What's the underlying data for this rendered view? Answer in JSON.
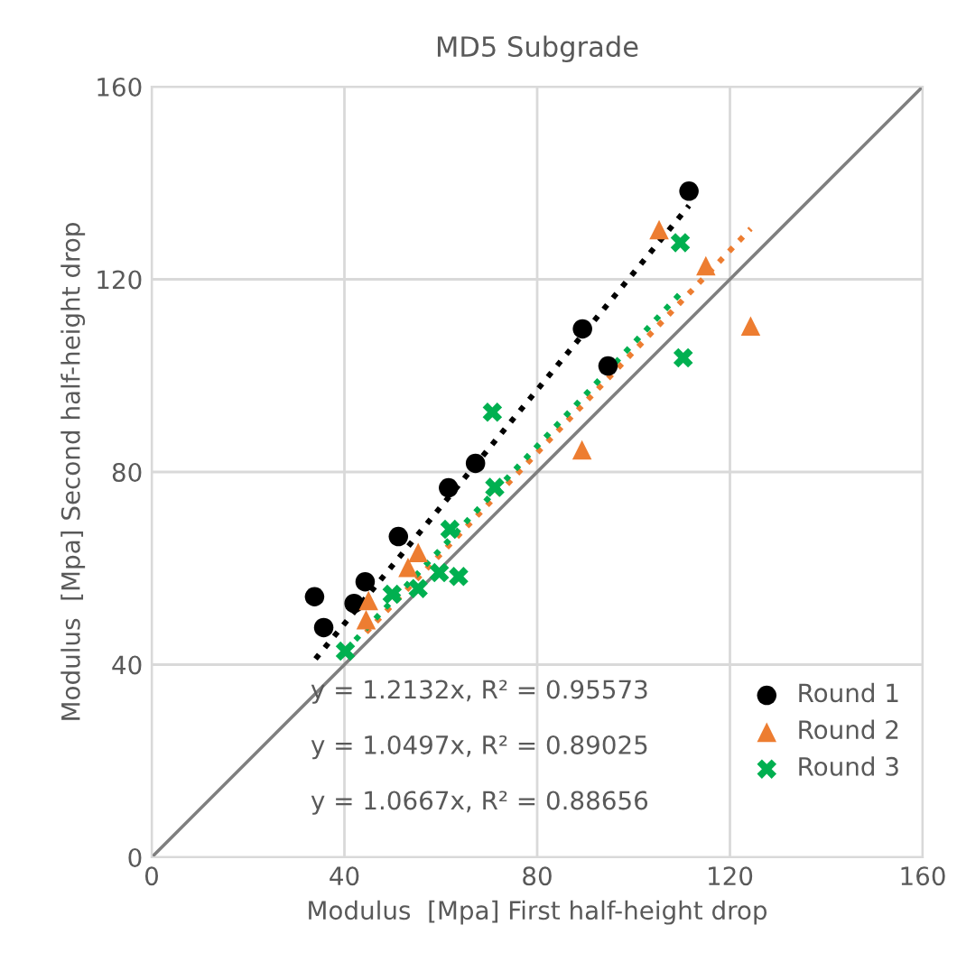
{
  "chart_data": {
    "type": "scatter",
    "title": "MD5 Subgrade",
    "xlabel": "Modulus  [Mpa] First half-height drop",
    "ylabel": "Modulus  [Mpa] Second half-height drop",
    "xlim": [
      0,
      160
    ],
    "ylim": [
      0,
      160
    ],
    "xticks": [
      0,
      40,
      80,
      120,
      160
    ],
    "yticks": [
      0,
      40,
      80,
      120,
      160
    ],
    "grid": true,
    "legend": "bottom right",
    "series": [
      {
        "name": "Round 1",
        "color": "#000000",
        "marker": "circle",
        "x": [
          33.8,
          35.7,
          42.0,
          44.3,
          51.2,
          61.6,
          67.2,
          89.4,
          94.7,
          111.5
        ],
        "values": [
          54.1,
          47.7,
          52.7,
          57.2,
          66.6,
          76.7,
          81.8,
          109.7,
          102.0,
          138.3
        ]
      },
      {
        "name": "Round 2",
        "color": "#ed7d31",
        "marker": "triangle",
        "x": [
          45.0,
          44.5,
          53.2,
          55.3,
          89.3,
          105.3,
          115.0,
          124.3
        ],
        "values": [
          53.3,
          49.3,
          60.2,
          63.3,
          84.6,
          130.3,
          122.8,
          110.3
        ]
      },
      {
        "name": "Round 3",
        "color": "#00b050",
        "marker": "cross",
        "x": [
          40.2,
          49.9,
          55.3,
          59.7,
          63.7,
          61.9,
          71.2,
          70.7,
          109.7,
          110.3
        ],
        "values": [
          42.8,
          54.6,
          55.8,
          59.1,
          58.3,
          68.1,
          76.8,
          92.4,
          127.6,
          103.7
        ]
      },
      {
        "type": "line",
        "color": "#000000",
        "line_style": "dotted",
        "x": [
          34.0,
          111.5
        ],
        "values": [
          41.2,
          135.3
        ]
      },
      {
        "type": "line",
        "color": "#ed7d31",
        "line_style": "dotted",
        "x": [
          44.5,
          124.3
        ],
        "values": [
          46.7,
          130.5
        ]
      },
      {
        "type": "line",
        "color": "#00b050",
        "line_style": "dotted",
        "x": [
          40.2,
          110.3
        ],
        "values": [
          42.9,
          117.7
        ]
      },
      {
        "type": "line",
        "color": "#7f7f7f",
        "line_style": "solid",
        "x": [
          0,
          160
        ],
        "values": [
          0,
          160
        ]
      }
    ],
    "annotations": [
      "y = 1.2132x, R² = 0.95573",
      "y = 1.0497x, R² = 0.89025",
      "y = 1.0667x, R² = 0.88656"
    ]
  }
}
